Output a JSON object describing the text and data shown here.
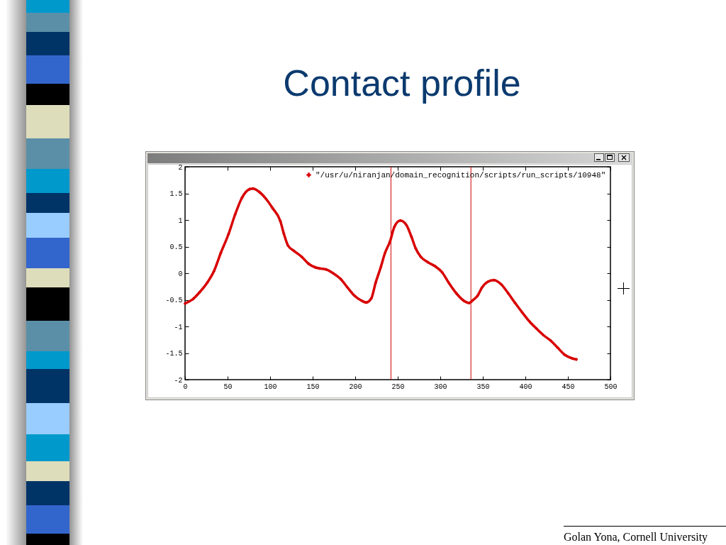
{
  "chart_data": {
    "type": "line",
    "title": "Contact profile",
    "annotations": [
      "Golan Yona, Cornell University"
    ],
    "x": [
      0,
      9,
      17,
      26,
      34,
      42,
      51,
      59,
      67,
      76,
      80,
      87,
      95,
      103,
      112,
      116,
      121,
      128,
      137,
      145,
      153,
      158,
      166,
      174,
      183,
      191,
      199,
      208,
      213,
      219,
      224,
      230,
      235,
      241,
      246,
      253,
      260,
      266,
      271,
      277,
      285,
      294,
      302,
      310,
      319,
      327,
      334,
      338,
      344,
      349,
      356,
      363,
      371,
      380,
      388,
      396,
      405,
      413,
      421,
      430,
      438,
      446,
      455,
      460
    ],
    "series": [
      {
        "name": "\"/usr/u/niranjan/domain_recognition/scripts/run_scripts/10948\"",
        "color": "#d80000",
        "values": [
          -0.57,
          -0.49,
          -0.36,
          -0.18,
          0.04,
          0.38,
          0.73,
          1.11,
          1.42,
          1.58,
          1.59,
          1.53,
          1.4,
          1.22,
          0.98,
          0.75,
          0.52,
          0.42,
          0.31,
          0.18,
          0.11,
          0.09,
          0.07,
          0,
          -0.11,
          -0.27,
          -0.42,
          -0.52,
          -0.55,
          -0.47,
          -0.18,
          0.11,
          0.38,
          0.6,
          0.87,
          0.99,
          0.91,
          0.69,
          0.47,
          0.31,
          0.21,
          0.13,
          0.02,
          -0.18,
          -0.38,
          -0.51,
          -0.56,
          -0.51,
          -0.42,
          -0.27,
          -0.16,
          -0.13,
          -0.2,
          -0.38,
          -0.56,
          -0.73,
          -0.91,
          -1.04,
          -1.16,
          -1.27,
          -1.4,
          -1.53,
          -1.6,
          -1.62
        ]
      }
    ],
    "xlim": [
      0,
      500
    ],
    "ylim": [
      -2,
      2
    ],
    "xticks": [
      0,
      50,
      100,
      150,
      200,
      250,
      300,
      350,
      400,
      450,
      500
    ],
    "yticks": [
      -2,
      -1.5,
      -1,
      -0.5,
      0,
      0.5,
      1,
      1.5,
      2
    ],
    "ref_lines": [
      {
        "axis": "x",
        "value": 242,
        "color": "#cc0000"
      },
      {
        "axis": "x",
        "value": 336,
        "color": "#cc0000"
      }
    ],
    "legend": "top right",
    "marker": "cross",
    "line_style": "solid"
  }
}
